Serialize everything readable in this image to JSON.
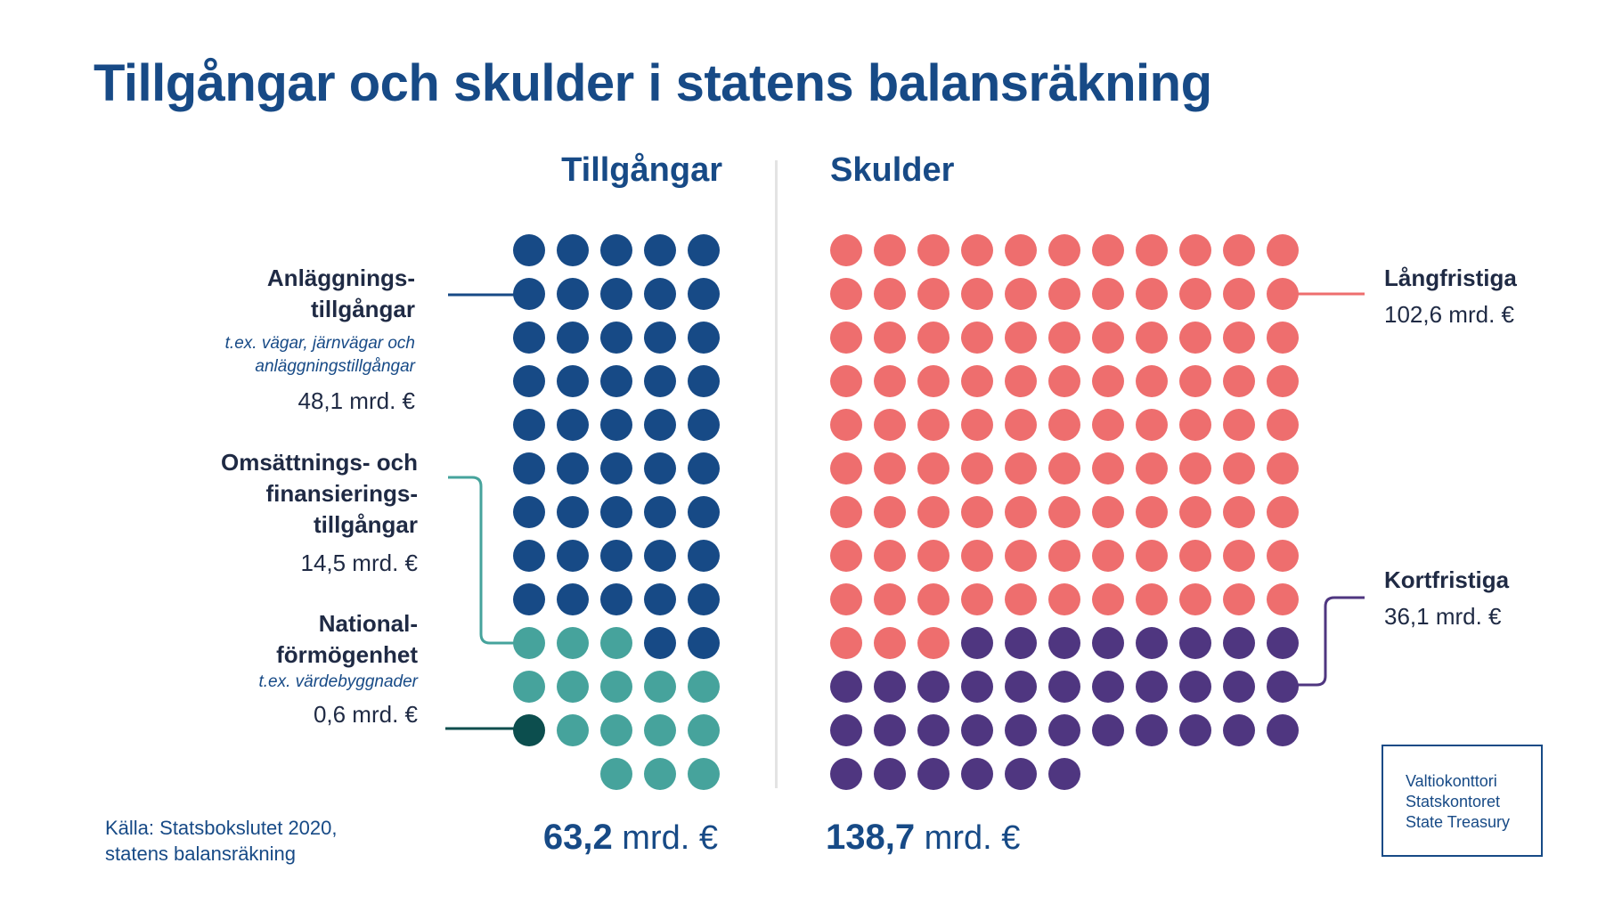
{
  "title": "Tillgångar och skulder i statens balansräkning",
  "colors": {
    "title": "#174a86",
    "anlaggning": "#174a86",
    "omsattning": "#46a39c",
    "national": "#0c4e4e",
    "langfristiga": "#ee6e6e",
    "kortfristiga": "#4f3680"
  },
  "assets": {
    "heading": "Tillgångar",
    "total_number": "63,2",
    "total_unit": "mrd. €",
    "anlaggning": {
      "label_line1": "Anläggnings-",
      "label_line2": "tillgångar",
      "sub_line1": "t.ex. vägar, järnvägar och",
      "sub_line2": "anläggningstillgångar",
      "value": "48,1 mrd. €"
    },
    "omsattning": {
      "label_line1": "Omsättnings- och",
      "label_line2": "finansierings-",
      "label_line3": "tillgångar",
      "value": "14,5 mrd. €"
    },
    "national": {
      "label_line1": "National-",
      "label_line2": "förmögenhet",
      "sub_line1": "t.ex. värdebyggnader",
      "value": "0,6 mrd. €"
    }
  },
  "liabilities": {
    "heading": "Skulder",
    "total_number": "138,7",
    "total_unit": "mrd. €",
    "langfristiga": {
      "label": "Långfristiga",
      "value": "102,6 mrd. €"
    },
    "kortfristiga": {
      "label": "Kortfristiga",
      "value": "36,1 mrd. €"
    }
  },
  "source": {
    "line1": "Källa: Statsbokslutet 2020,",
    "line2": "statens balansräkning"
  },
  "logo": {
    "line1": "Valtiokonttori",
    "line2": "Statskontoret",
    "line3": "State Treasury"
  },
  "chart_data": [
    {
      "type": "waffle",
      "name": "Tillgångar",
      "unit": "mrd. €",
      "columns": 5,
      "total": 63.2,
      "segments": [
        {
          "label": "Anläggningstillgångar",
          "value": 48.1,
          "dots": 47,
          "color": "#174a86"
        },
        {
          "label": "Omsättnings- och finansieringstillgångar",
          "value": 14.5,
          "dots": 15,
          "color": "#46a39c"
        },
        {
          "label": "Nationalförmögenhet",
          "value": 0.6,
          "dots": 1,
          "color": "#0c4e4e"
        }
      ]
    },
    {
      "type": "waffle",
      "name": "Skulder",
      "unit": "mrd. €",
      "columns": 11,
      "total": 138.7,
      "segments": [
        {
          "label": "Långfristiga",
          "value": 102.6,
          "dots": 102,
          "color": "#ee6e6e"
        },
        {
          "label": "Kortfristiga",
          "value": 36.1,
          "dots": 36,
          "color": "#4f3680"
        }
      ]
    }
  ]
}
